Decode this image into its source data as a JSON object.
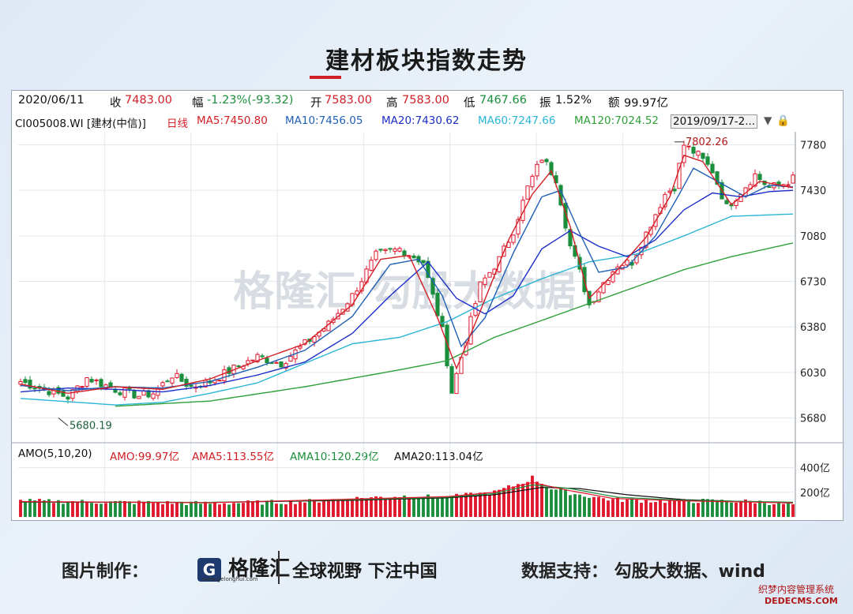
{
  "title": "建材板块指数走势",
  "info": {
    "date": "2020/06/11",
    "close_label": "收",
    "close": "7483.00",
    "chg_label": "幅",
    "chg": "-1.23%(-93.32)",
    "open_label": "开",
    "open": "7583.00",
    "high_label": "高",
    "high": "7583.00",
    "low_label": "低",
    "low": "7467.66",
    "amp_label": "振",
    "amp": "1.52%",
    "amt_label": "额",
    "amt": "99.97亿"
  },
  "ma_bar": {
    "code": "CI005008.WI [建材(中信)]",
    "period": "日线",
    "ma5": "MA5:7450.80",
    "ma10": "MA10:7456.05",
    "ma20": "MA20:7430.62",
    "ma60": "MA60:7247.66",
    "ma120": "MA120:7024.52",
    "range": "2019/09/17-2..."
  },
  "vol_bar": {
    "label": "AMO(5,10,20)",
    "amo": "AMO:99.97亿",
    "ama5": "AMA5:113.55亿",
    "ama10": "AMA10:120.29亿",
    "ama20": "AMA20:113.04亿"
  },
  "watermark": "格隆汇  勾股大数据",
  "colors": {
    "up": "#e0162b",
    "down": "#1b8e3c",
    "ma5": "#d21f26",
    "ma10": "#1f5fb4",
    "ma20": "#1d2fc8",
    "ma60": "#2bb5d4",
    "ma120": "#2fa03a"
  },
  "footer": {
    "made_by": "图片制作：",
    "brand": "格隆汇",
    "brand_url": "www.gelonghui.com",
    "slogan": "全球视野 下注中国",
    "source": "数据支持：  勾股大数据、wind"
  },
  "corner_watermark": {
    "line1": "织梦内容管理系统",
    "line2": "DEDECMS.COM"
  },
  "chart_data": [
    {
      "type": "candlestick",
      "title": "",
      "ylim": [
        5550,
        7880
      ],
      "yticks": [
        "7780",
        "7430",
        "7080",
        "6730",
        "6380",
        "6030",
        "5680"
      ],
      "y_tick_values": [
        7780,
        7430,
        7080,
        6730,
        6380,
        6030,
        5680
      ],
      "annotations": [
        {
          "text": "5680.19",
          "value": 5680.19,
          "bar_index": 8
        },
        {
          "text": "7802.26",
          "value": 7802.26,
          "bar_index": 138
        }
      ],
      "control_points": {
        "close": [
          [
            0,
            5960
          ],
          [
            5,
            5900
          ],
          [
            10,
            5840
          ],
          [
            14,
            5990
          ],
          [
            20,
            5900
          ],
          [
            25,
            5850
          ],
          [
            28,
            5870
          ],
          [
            32,
            6010
          ],
          [
            36,
            5920
          ],
          [
            40,
            5960
          ],
          [
            45,
            6060
          ],
          [
            50,
            6150
          ],
          [
            55,
            6100
          ],
          [
            60,
            6250
          ],
          [
            65,
            6400
          ],
          [
            70,
            6620
          ],
          [
            75,
            6930
          ],
          [
            80,
            6980
          ],
          [
            85,
            6880
          ],
          [
            89,
            6350
          ],
          [
            91,
            5880
          ],
          [
            93,
            6150
          ],
          [
            97,
            6700
          ],
          [
            101,
            6900
          ],
          [
            104,
            7120
          ],
          [
            107,
            7450
          ],
          [
            110,
            7680
          ],
          [
            113,
            7520
          ],
          [
            116,
            7000
          ],
          [
            118,
            6800
          ],
          [
            120,
            6550
          ],
          [
            123,
            6720
          ],
          [
            126,
            6860
          ],
          [
            129,
            6880
          ],
          [
            132,
            7100
          ],
          [
            136,
            7400
          ],
          [
            138,
            7460
          ],
          [
            140,
            7780
          ],
          [
            143,
            7700
          ],
          [
            146,
            7580
          ],
          [
            149,
            7300
          ],
          [
            152,
            7420
          ],
          [
            155,
            7550
          ],
          [
            158,
            7450
          ],
          [
            161,
            7480
          ],
          [
            163,
            7520
          ]
        ],
        "ma5": [
          [
            0,
            5940
          ],
          [
            10,
            5870
          ],
          [
            20,
            5920
          ],
          [
            30,
            5900
          ],
          [
            40,
            5980
          ],
          [
            50,
            6120
          ],
          [
            60,
            6250
          ],
          [
            70,
            6550
          ],
          [
            76,
            6900
          ],
          [
            82,
            6930
          ],
          [
            88,
            6450
          ],
          [
            92,
            6060
          ],
          [
            97,
            6500
          ],
          [
            103,
            7050
          ],
          [
            108,
            7400
          ],
          [
            112,
            7580
          ],
          [
            116,
            7150
          ],
          [
            120,
            6600
          ],
          [
            126,
            6820
          ],
          [
            132,
            7070
          ],
          [
            137,
            7380
          ],
          [
            140,
            7700
          ],
          [
            144,
            7650
          ],
          [
            150,
            7320
          ],
          [
            156,
            7500
          ],
          [
            163,
            7450
          ]
        ],
        "ma10": [
          [
            0,
            5930
          ],
          [
            10,
            5890
          ],
          [
            20,
            5920
          ],
          [
            30,
            5910
          ],
          [
            40,
            5960
          ],
          [
            50,
            6070
          ],
          [
            60,
            6200
          ],
          [
            70,
            6460
          ],
          [
            78,
            6860
          ],
          [
            84,
            6900
          ],
          [
            89,
            6620
          ],
          [
            93,
            6230
          ],
          [
            98,
            6450
          ],
          [
            104,
            6950
          ],
          [
            110,
            7380
          ],
          [
            114,
            7430
          ],
          [
            118,
            7100
          ],
          [
            122,
            6800
          ],
          [
            128,
            6840
          ],
          [
            134,
            7080
          ],
          [
            139,
            7400
          ],
          [
            142,
            7600
          ],
          [
            147,
            7500
          ],
          [
            153,
            7380
          ],
          [
            158,
            7470
          ],
          [
            163,
            7456
          ]
        ],
        "ma20": [
          [
            0,
            5880
          ],
          [
            10,
            5910
          ],
          [
            20,
            5900
          ],
          [
            30,
            5880
          ],
          [
            40,
            5930
          ],
          [
            50,
            6010
          ],
          [
            60,
            6110
          ],
          [
            70,
            6330
          ],
          [
            78,
            6620
          ],
          [
            86,
            6880
          ],
          [
            92,
            6600
          ],
          [
            98,
            6480
          ],
          [
            104,
            6620
          ],
          [
            110,
            6980
          ],
          [
            116,
            7120
          ],
          [
            122,
            7000
          ],
          [
            128,
            6920
          ],
          [
            134,
            7050
          ],
          [
            140,
            7280
          ],
          [
            146,
            7410
          ],
          [
            152,
            7380
          ],
          [
            158,
            7420
          ],
          [
            163,
            7430
          ]
        ],
        "ma60": [
          [
            0,
            5830
          ],
          [
            20,
            5780
          ],
          [
            30,
            5800
          ],
          [
            40,
            5870
          ],
          [
            50,
            5950
          ],
          [
            60,
            6100
          ],
          [
            70,
            6250
          ],
          [
            80,
            6300
          ],
          [
            90,
            6420
          ],
          [
            100,
            6600
          ],
          [
            110,
            6750
          ],
          [
            120,
            6880
          ],
          [
            130,
            6940
          ],
          [
            140,
            7080
          ],
          [
            150,
            7230
          ],
          [
            163,
            7248
          ]
        ],
        "ma120": [
          [
            20,
            5770
          ],
          [
            40,
            5810
          ],
          [
            60,
            5920
          ],
          [
            80,
            6050
          ],
          [
            90,
            6120
          ],
          [
            100,
            6300
          ],
          [
            110,
            6430
          ],
          [
            120,
            6560
          ],
          [
            130,
            6690
          ],
          [
            140,
            6820
          ],
          [
            150,
            6920
          ],
          [
            163,
            7025
          ]
        ]
      },
      "n_bars": 164
    },
    {
      "type": "bar",
      "title": "",
      "ylim": [
        0,
        500
      ],
      "yticks": [
        "400亿",
        "200亿"
      ],
      "y_tick_values": [
        400,
        200
      ],
      "control_points": {
        "volume": [
          [
            0,
            130
          ],
          [
            20,
            120
          ],
          [
            40,
            110
          ],
          [
            60,
            125
          ],
          [
            70,
            150
          ],
          [
            80,
            170
          ],
          [
            90,
            160
          ],
          [
            100,
            200
          ],
          [
            106,
            280
          ],
          [
            108,
            320
          ],
          [
            112,
            230
          ],
          [
            118,
            180
          ],
          [
            125,
            140
          ],
          [
            135,
            130
          ],
          [
            145,
            130
          ],
          [
            155,
            125
          ],
          [
            163,
            100
          ]
        ],
        "ama5": [
          [
            0,
            125
          ],
          [
            40,
            115
          ],
          [
            70,
            145
          ],
          [
            90,
            165
          ],
          [
            100,
            200
          ],
          [
            108,
            280
          ],
          [
            115,
            220
          ],
          [
            125,
            150
          ],
          [
            140,
            130
          ],
          [
            163,
            114
          ]
        ],
        "ama10": [
          [
            0,
            122
          ],
          [
            40,
            118
          ],
          [
            70,
            140
          ],
          [
            90,
            160
          ],
          [
            100,
            190
          ],
          [
            108,
            260
          ],
          [
            116,
            230
          ],
          [
            126,
            160
          ],
          [
            140,
            135
          ],
          [
            163,
            120
          ]
        ],
        "ama20": [
          [
            0,
            120
          ],
          [
            40,
            118
          ],
          [
            70,
            135
          ],
          [
            90,
            155
          ],
          [
            100,
            180
          ],
          [
            110,
            240
          ],
          [
            118,
            230
          ],
          [
            128,
            180
          ],
          [
            140,
            140
          ],
          [
            163,
            113
          ]
        ]
      }
    }
  ]
}
